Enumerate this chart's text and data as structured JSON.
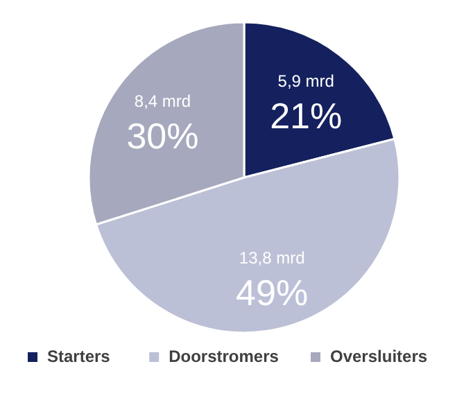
{
  "chart_data": {
    "type": "pie",
    "categories": [
      "Starters",
      "Doorstromers",
      "Oversluiters"
    ],
    "values": [
      5.9,
      13.8,
      8.4
    ],
    "colors": [
      "#14215e",
      "#bcc0d6",
      "#a6a8bd"
    ],
    "value_labels": [
      "5,9 mrd\n21%",
      "13,8 mrd\n49%",
      "8,4 mrd\n30%"
    ],
    "legend": "bottom"
  }
}
